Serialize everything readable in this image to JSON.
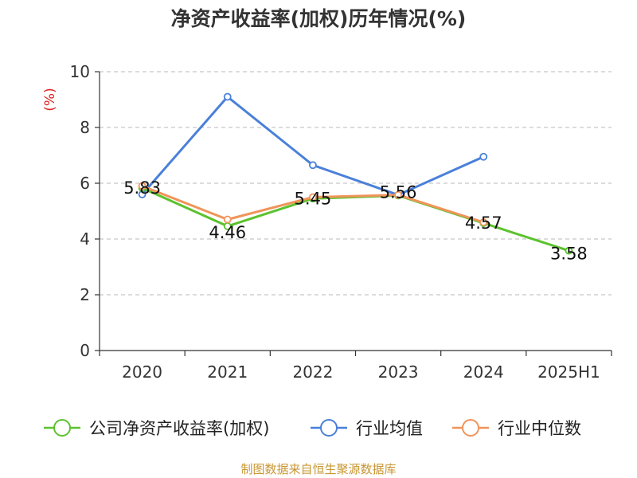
{
  "chart_data": {
    "type": "line",
    "title": "净资产收益率(加权)历年情况(%)",
    "ylabel": "(%)",
    "xlabel": "",
    "categories": [
      "2020",
      "2021",
      "2022",
      "2023",
      "2024",
      "2025H1"
    ],
    "ylim": [
      0,
      10
    ],
    "yticks": [
      0,
      2,
      4,
      6,
      8,
      10
    ],
    "grid": true,
    "legend_position": "bottom",
    "series": [
      {
        "name": "公司净资产收益率(加权)",
        "color": "#5cc22e",
        "values": [
          5.83,
          4.46,
          5.45,
          5.56,
          4.57,
          3.58
        ],
        "labels": [
          "5.83",
          "4.46",
          "5.45",
          "5.56",
          "4.57",
          "3.58"
        ]
      },
      {
        "name": "行业均值",
        "color": "#4a80d9",
        "values": [
          5.6,
          9.1,
          6.65,
          5.58,
          6.95,
          null
        ]
      },
      {
        "name": "行业中位数",
        "color": "#f0945a",
        "values": [
          5.9,
          4.7,
          5.5,
          5.58,
          4.6,
          null
        ]
      }
    ]
  },
  "footer": {
    "source": "制图数据来自恒生聚源数据库"
  }
}
